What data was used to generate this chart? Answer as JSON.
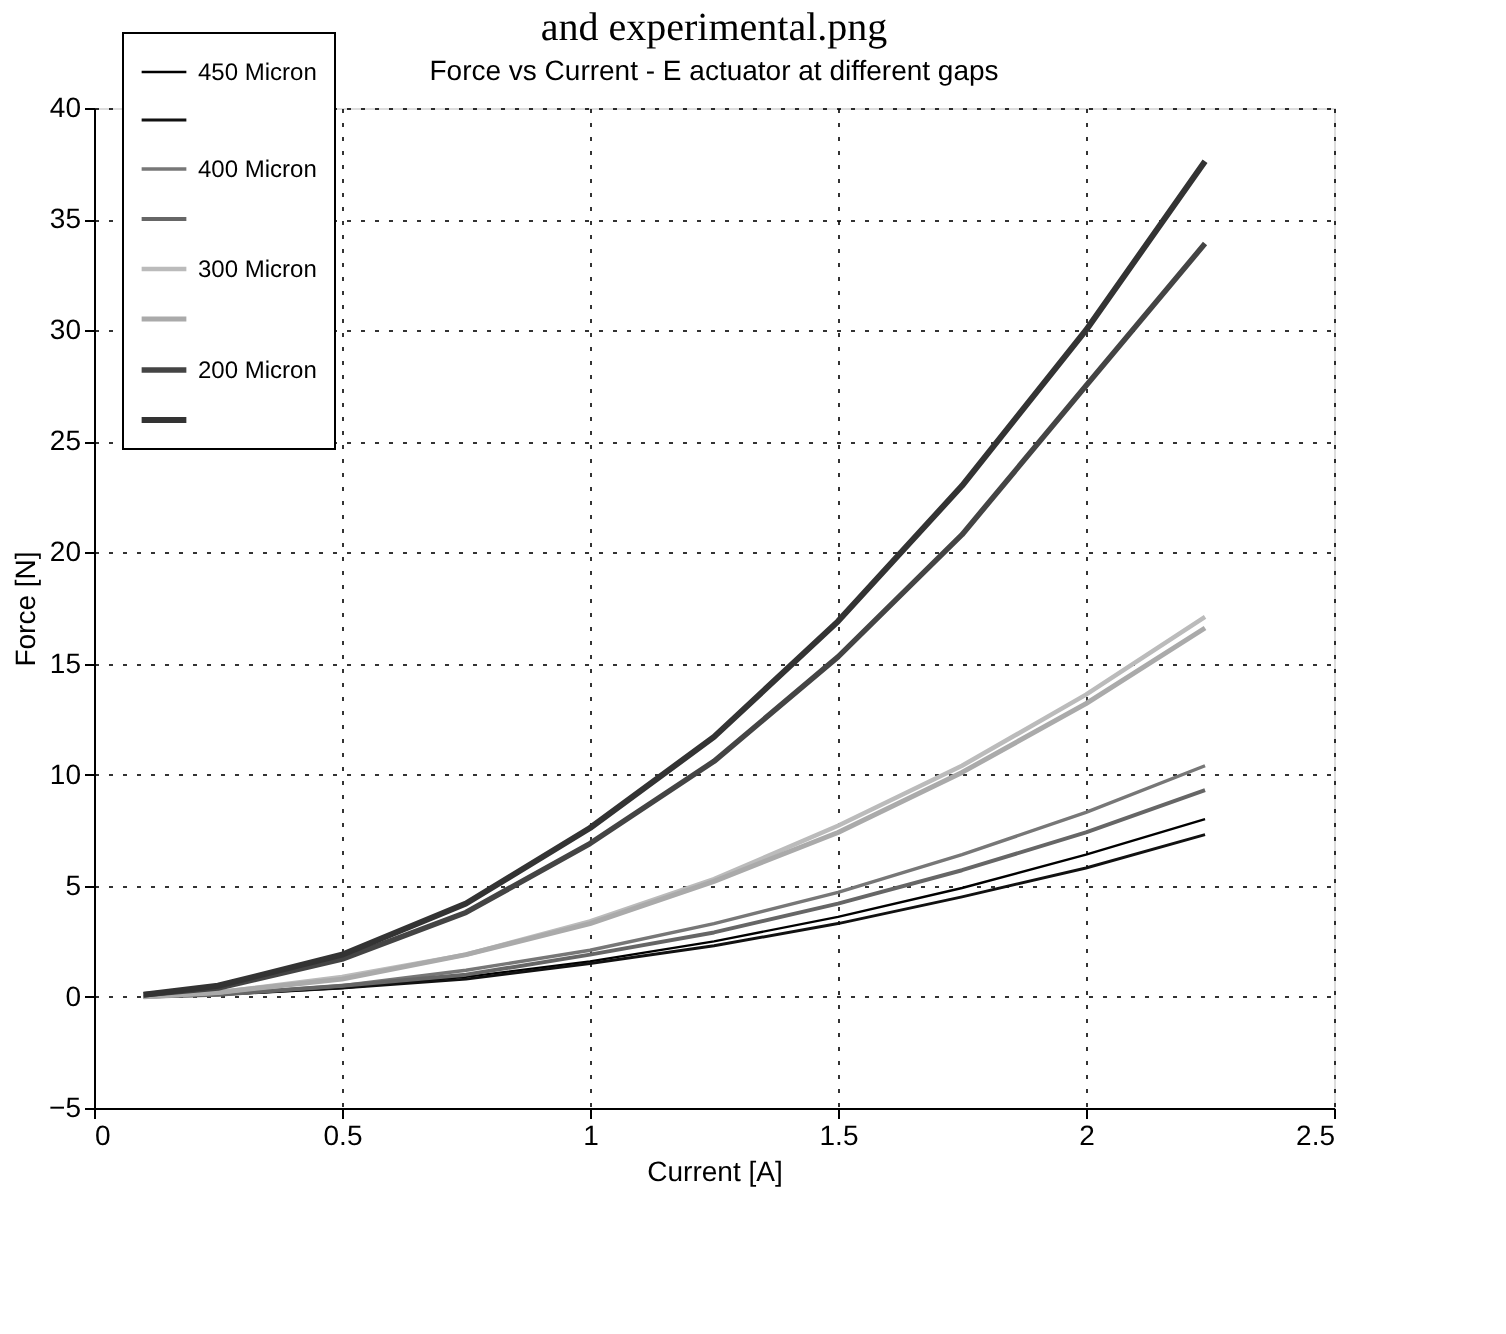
{
  "chart_data": {
    "type": "line",
    "title": "Force vs Current - E actuator at different gaps",
    "xlabel": "Current [A]",
    "ylabel": "Force [N]",
    "annotations": [
      "and experimental.png"
    ],
    "x": [
      0.1,
      0.25,
      0.5,
      0.75,
      1,
      1.25,
      1.5,
      1.75,
      2,
      2.24
    ],
    "series": [
      {
        "name": "450 Micron",
        "color": "#000000",
        "values": [
          0,
          0.1,
          0.4,
          0.9,
          1.6,
          2.5,
          3.6,
          4.9,
          6.4,
          8.0
        ]
      },
      {
        "color": "#111111",
        "values": [
          0,
          0.1,
          0.4,
          0.8,
          1.5,
          2.3,
          3.3,
          4.5,
          5.8,
          7.3
        ]
      },
      {
        "name": "400 Micron",
        "color": "#777777",
        "values": [
          0,
          0.1,
          0.5,
          1.2,
          2.1,
          3.3,
          4.7,
          6.4,
          8.3,
          10.4
        ]
      },
      {
        "color": "#666666",
        "values": [
          0,
          0.1,
          0.5,
          1.0,
          1.9,
          2.9,
          4.2,
          5.7,
          7.4,
          9.3
        ]
      },
      {
        "name": "300 Micron",
        "color": "#bbbbbb",
        "values": [
          0,
          0.2,
          0.9,
          1.9,
          3.4,
          5.3,
          7.7,
          10.4,
          13.6,
          17.1
        ]
      },
      {
        "color": "#aaaaaa",
        "values": [
          0,
          0.2,
          0.8,
          1.9,
          3.3,
          5.2,
          7.4,
          10.1,
          13.2,
          16.6
        ]
      },
      {
        "name": "200 Micron",
        "color": "#444444",
        "values": [
          0.1,
          0.4,
          1.7,
          3.8,
          6.9,
          10.6,
          15.3,
          20.8,
          27.5,
          33.9
        ]
      },
      {
        "color": "#333333",
        "values": [
          0.1,
          0.5,
          1.9,
          4.2,
          7.6,
          11.7,
          16.9,
          23.0,
          30.0,
          37.6
        ]
      }
    ],
    "xlim": [
      0,
      2.5
    ],
    "xticks": [
      0,
      0.5,
      1,
      1.5,
      2,
      2.5
    ],
    "ylim": [
      -5,
      40
    ],
    "yticks": [
      -5,
      0,
      5,
      10,
      15,
      20,
      25,
      30,
      35,
      40
    ],
    "grid": true,
    "legend": "top left",
    "line_style": "solid",
    "marker": "none"
  }
}
